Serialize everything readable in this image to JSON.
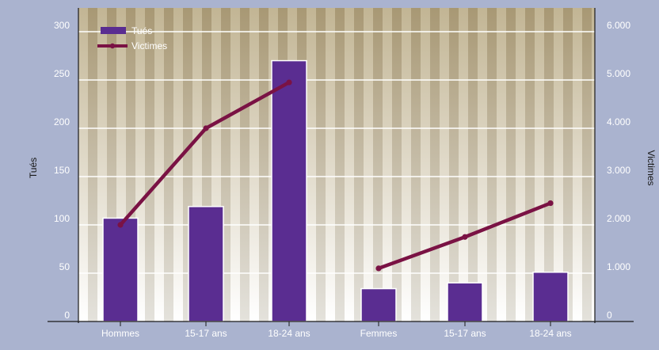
{
  "chart_data": {
    "type": "bar",
    "categories": [
      "Hommes",
      "15-17 ans",
      "18-24 ans",
      "Femmes",
      "15-17 ans",
      "18-24 ans"
    ],
    "series": [
      {
        "name": "Tués",
        "type": "bar",
        "axis": "left",
        "color": "#5a2d91",
        "values": [
          107,
          119,
          270,
          34,
          40,
          51
        ]
      },
      {
        "name": "Victimes",
        "type": "line",
        "axis": "right",
        "color": "#7a1244",
        "values": [
          2000,
          4000,
          4950,
          null,
          null,
          null
        ]
      },
      {
        "name": "Victimes",
        "type": "line",
        "axis": "right",
        "color": "#7a1244",
        "values": [
          null,
          null,
          null,
          1100,
          1750,
          2450
        ]
      }
    ],
    "ylabel": "Tués",
    "y2label": "Victimes",
    "ylim": [
      0,
      300
    ],
    "y2lim": [
      0,
      6000
    ],
    "yticks": [
      "0",
      "50",
      "100",
      "150",
      "200",
      "250",
      "300"
    ],
    "y2ticks": [
      "0",
      "1.000",
      "2.000",
      "3.000",
      "4.000",
      "5.000",
      "6.000"
    ],
    "grid": true,
    "legend": "top-left",
    "colors": {
      "background": "#aab3cf",
      "bar": "#5a2d91",
      "line": "#7a1244",
      "grid": "#ffffff",
      "stripe_light": "#ffffff",
      "stripe_dark": "#b8a27a"
    }
  }
}
